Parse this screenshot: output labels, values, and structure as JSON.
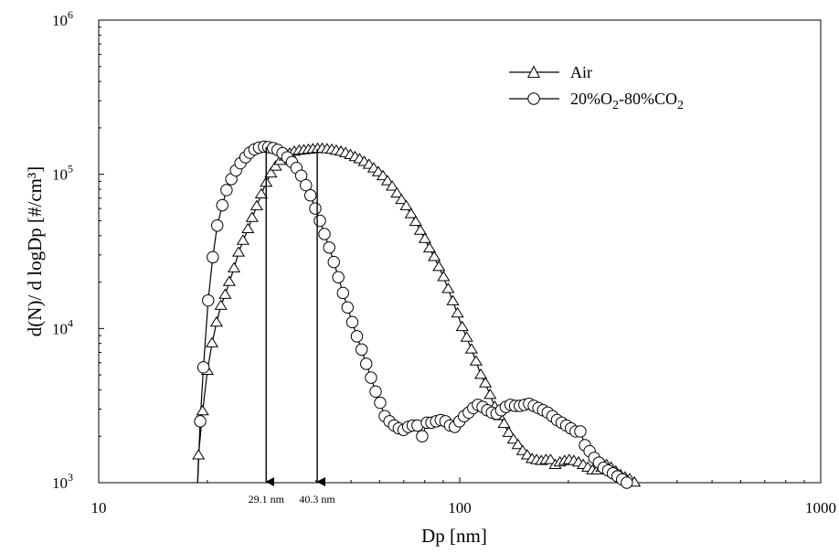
{
  "chart_data": {
    "type": "scatter",
    "title": "",
    "xlabel": "Dp [nm]",
    "ylabel": "d(N)/ d logDp   [#/cm³]",
    "x_scale": "log",
    "y_scale": "log",
    "xlim": [
      10,
      1000
    ],
    "ylim": [
      1000,
      1000000
    ],
    "x_ticks": [
      {
        "value": 10,
        "label": "10"
      },
      {
        "value": 100,
        "label": "100"
      },
      {
        "value": 1000,
        "label": "1000"
      }
    ],
    "y_ticks": [
      {
        "value": 1000,
        "base": "10",
        "exp": "3"
      },
      {
        "value": 10000,
        "base": "10",
        "exp": "4"
      },
      {
        "value": 100000,
        "base": "10",
        "exp": "5"
      },
      {
        "value": 1000000,
        "base": "10",
        "exp": "6"
      }
    ],
    "grid": false,
    "legend_position": "top-right",
    "series": [
      {
        "name": "Air",
        "marker": "triangle",
        "points": [
          [
            18.8,
            1000
          ],
          [
            18.9,
            1500
          ],
          [
            19.4,
            2900
          ],
          [
            20.0,
            5300
          ],
          [
            20.6,
            8000
          ],
          [
            21.2,
            10900
          ],
          [
            21.8,
            14000
          ],
          [
            22.4,
            16500
          ],
          [
            23.0,
            20000
          ],
          [
            23.7,
            24500
          ],
          [
            24.4,
            31000
          ],
          [
            25.1,
            37000
          ],
          [
            25.9,
            44000
          ],
          [
            26.6,
            52000
          ],
          [
            27.4,
            62000
          ],
          [
            28.2,
            74000
          ],
          [
            29.1,
            88000
          ],
          [
            30.0,
            101000
          ],
          [
            30.9,
            112000
          ],
          [
            31.8,
            122000
          ],
          [
            32.8,
            130000
          ],
          [
            33.8,
            136000
          ],
          [
            34.8,
            140000
          ],
          [
            35.9,
            142000
          ],
          [
            37.0,
            143000
          ],
          [
            38.1,
            144000
          ],
          [
            39.2,
            145000
          ],
          [
            40.4,
            146000
          ],
          [
            41.6,
            146000
          ],
          [
            42.9,
            145000
          ],
          [
            44.2,
            144000
          ],
          [
            45.5,
            142000
          ],
          [
            46.9,
            140000
          ],
          [
            48.3,
            137000
          ],
          [
            49.8,
            133000
          ],
          [
            51.3,
            129000
          ],
          [
            52.8,
            125000
          ],
          [
            54.4,
            120000
          ],
          [
            56.1,
            115000
          ],
          [
            57.8,
            109000
          ],
          [
            59.5,
            103000
          ],
          [
            61.3,
            97000
          ],
          [
            63.1,
            90000
          ],
          [
            65.0,
            83000
          ],
          [
            67.0,
            75000
          ],
          [
            69.0,
            68000
          ],
          [
            71.1,
            62000
          ],
          [
            73.3,
            55000
          ],
          [
            75.5,
            49000
          ],
          [
            77.8,
            43000
          ],
          [
            80.1,
            38000
          ],
          [
            82.5,
            33000
          ],
          [
            85.0,
            29000
          ],
          [
            87.6,
            25000
          ],
          [
            90.2,
            21500
          ],
          [
            92.9,
            18000
          ],
          [
            95.7,
            15000
          ],
          [
            98.6,
            12500
          ],
          [
            101.6,
            10200
          ],
          [
            104.6,
            8700
          ],
          [
            107.8,
            7300
          ],
          [
            111.0,
            6100
          ],
          [
            114.4,
            5000
          ],
          [
            117.8,
            4400
          ],
          [
            121.4,
            3700
          ],
          [
            125.0,
            3100
          ],
          [
            128.8,
            2700
          ],
          [
            132.7,
            2400
          ],
          [
            136.7,
            2100
          ],
          [
            140.8,
            1900
          ],
          [
            145.0,
            1750
          ],
          [
            149.4,
            1600
          ],
          [
            153.9,
            1500
          ],
          [
            158.6,
            1420
          ],
          [
            163.3,
            1400
          ],
          [
            168.3,
            1380
          ],
          [
            173.3,
            1400
          ],
          [
            178.5,
            1400
          ],
          [
            183.9,
            1300
          ],
          [
            189.5,
            1350
          ],
          [
            195.2,
            1380
          ],
          [
            201.1,
            1400
          ],
          [
            207.1,
            1380
          ],
          [
            213.4,
            1350
          ],
          [
            219.8,
            1300
          ],
          [
            226.4,
            1250
          ],
          [
            233.2,
            1200
          ],
          [
            240.3,
            1200
          ],
          [
            247.5,
            1250
          ],
          [
            255.0,
            1300
          ],
          [
            262.7,
            1250
          ],
          [
            270.6,
            1180
          ],
          [
            278.7,
            1120
          ],
          [
            287.1,
            1080
          ],
          [
            295.8,
            1050
          ],
          [
            304.7,
            1000
          ]
        ]
      },
      {
        "name": "20%O2-80%CO2",
        "marker": "circle",
        "points": [
          [
            18.8,
            1000
          ],
          [
            19.1,
            2500
          ],
          [
            19.5,
            5600
          ],
          [
            20.1,
            15200
          ],
          [
            20.7,
            29000
          ],
          [
            21.3,
            46500
          ],
          [
            22.0,
            63000
          ],
          [
            22.6,
            79000
          ],
          [
            23.3,
            93000
          ],
          [
            24.0,
            106000
          ],
          [
            24.7,
            118000
          ],
          [
            25.5,
            129000
          ],
          [
            26.2,
            138000
          ],
          [
            27.0,
            145000
          ],
          [
            27.8,
            149000
          ],
          [
            28.7,
            151000
          ],
          [
            29.5,
            150000
          ],
          [
            30.4,
            148000
          ],
          [
            31.3,
            144000
          ],
          [
            32.3,
            137000
          ],
          [
            33.3,
            129000
          ],
          [
            34.3,
            120000
          ],
          [
            35.3,
            110000
          ],
          [
            36.4,
            98000
          ],
          [
            37.5,
            85000
          ],
          [
            38.6,
            73000
          ],
          [
            39.8,
            60000
          ],
          [
            41.0,
            50000
          ],
          [
            42.2,
            41000
          ],
          [
            43.5,
            33500
          ],
          [
            44.8,
            27000
          ],
          [
            46.1,
            21500
          ],
          [
            47.5,
            17000
          ],
          [
            48.9,
            13700
          ],
          [
            50.4,
            11000
          ],
          [
            51.9,
            8900
          ],
          [
            53.5,
            7300
          ],
          [
            55.1,
            5900
          ],
          [
            56.8,
            4800
          ],
          [
            58.5,
            3900
          ],
          [
            60.2,
            3300
          ],
          [
            62.0,
            2700
          ],
          [
            63.9,
            2500
          ],
          [
            65.8,
            2350
          ],
          [
            67.8,
            2250
          ],
          [
            69.9,
            2200
          ],
          [
            72.0,
            2300
          ],
          [
            74.1,
            2350
          ],
          [
            76.4,
            2350
          ],
          [
            78.7,
            2000
          ],
          [
            81.1,
            2450
          ],
          [
            83.5,
            2450
          ],
          [
            86.0,
            2500
          ],
          [
            88.6,
            2550
          ],
          [
            91.3,
            2500
          ],
          [
            94.0,
            2350
          ],
          [
            96.9,
            2300
          ],
          [
            99.8,
            2500
          ],
          [
            102.8,
            2700
          ],
          [
            105.9,
            2850
          ],
          [
            109.0,
            3050
          ],
          [
            112.3,
            3200
          ],
          [
            115.7,
            3100
          ],
          [
            119.2,
            2950
          ],
          [
            122.8,
            2850
          ],
          [
            126.5,
            2800
          ],
          [
            130.3,
            2950
          ],
          [
            134.2,
            3100
          ],
          [
            138.3,
            3200
          ],
          [
            142.4,
            3150
          ],
          [
            146.7,
            3150
          ],
          [
            151.1,
            3200
          ],
          [
            155.7,
            3250
          ],
          [
            160.4,
            3150
          ],
          [
            165.2,
            3050
          ],
          [
            170.2,
            2950
          ],
          [
            175.3,
            2850
          ],
          [
            180.6,
            2700
          ],
          [
            186.0,
            2550
          ],
          [
            191.6,
            2450
          ],
          [
            197.4,
            2350
          ],
          [
            203.3,
            2250
          ],
          [
            209.5,
            2150
          ],
          [
            215.8,
            2150
          ],
          [
            222.3,
            1750
          ],
          [
            229.0,
            1600
          ],
          [
            235.9,
            1450
          ],
          [
            243.0,
            1350
          ],
          [
            250.3,
            1250
          ],
          [
            257.8,
            1200
          ],
          [
            265.6,
            1150
          ],
          [
            273.6,
            1100
          ],
          [
            281.8,
            1050
          ],
          [
            290.3,
            1000
          ]
        ]
      }
    ],
    "annotations": [
      {
        "x": 29.1,
        "y": 150000,
        "label": "29.1 nm"
      },
      {
        "x": 40.3,
        "y": 146000,
        "label": "40.3 nm"
      }
    ]
  }
}
